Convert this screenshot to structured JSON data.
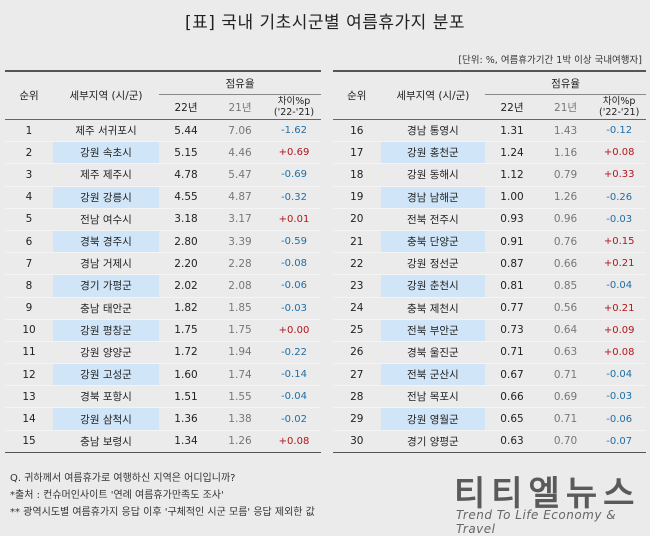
{
  "title": "[표] 국내 기초시군별 여름휴가지 분포",
  "unit_note": "[단위: %, 여름휴가기간 1박 이상 국내여행자]",
  "headers": {
    "rank": "순위",
    "region": "세부지역 (시/군)",
    "occupancy": "점유율",
    "y22": "22년",
    "y21": "21년",
    "diff": "차이%p",
    "diff_sub": "('22-'21)"
  },
  "table_left": [
    {
      "rank": "1",
      "region": "제주 서귀포시",
      "y22": "5.44",
      "y21": "7.06",
      "diff": "-1.62"
    },
    {
      "rank": "2",
      "region": "강원 속초시",
      "y22": "5.15",
      "y21": "4.46",
      "diff": "+0.69"
    },
    {
      "rank": "3",
      "region": "제주 제주시",
      "y22": "4.78",
      "y21": "5.47",
      "diff": "-0.69"
    },
    {
      "rank": "4",
      "region": "강원 강릉시",
      "y22": "4.55",
      "y21": "4.87",
      "diff": "-0.32"
    },
    {
      "rank": "5",
      "region": "전남 여수시",
      "y22": "3.18",
      "y21": "3.17",
      "diff": "+0.01"
    },
    {
      "rank": "6",
      "region": "경북 경주시",
      "y22": "2.80",
      "y21": "3.39",
      "diff": "-0.59"
    },
    {
      "rank": "7",
      "region": "경남 거제시",
      "y22": "2.20",
      "y21": "2.28",
      "diff": "-0.08"
    },
    {
      "rank": "8",
      "region": "경기 가평군",
      "y22": "2.02",
      "y21": "2.08",
      "diff": "-0.06"
    },
    {
      "rank": "9",
      "region": "충남 태안군",
      "y22": "1.82",
      "y21": "1.85",
      "diff": "-0.03"
    },
    {
      "rank": "10",
      "region": "강원 평창군",
      "y22": "1.75",
      "y21": "1.75",
      "diff": "+0.00"
    },
    {
      "rank": "11",
      "region": "강원 양양군",
      "y22": "1.72",
      "y21": "1.94",
      "diff": "-0.22"
    },
    {
      "rank": "12",
      "region": "강원 고성군",
      "y22": "1.60",
      "y21": "1.74",
      "diff": "-0.14"
    },
    {
      "rank": "13",
      "region": "경북 포항시",
      "y22": "1.51",
      "y21": "1.55",
      "diff": "-0.04"
    },
    {
      "rank": "14",
      "region": "강원 삼척시",
      "y22": "1.36",
      "y21": "1.38",
      "diff": "-0.02"
    },
    {
      "rank": "15",
      "region": "충남 보령시",
      "y22": "1.34",
      "y21": "1.26",
      "diff": "+0.08"
    }
  ],
  "table_right": [
    {
      "rank": "16",
      "region": "경남 통영시",
      "y22": "1.31",
      "y21": "1.43",
      "diff": "-0.12"
    },
    {
      "rank": "17",
      "region": "강원 홍천군",
      "y22": "1.24",
      "y21": "1.16",
      "diff": "+0.08"
    },
    {
      "rank": "18",
      "region": "강원 동해시",
      "y22": "1.12",
      "y21": "0.79",
      "diff": "+0.33"
    },
    {
      "rank": "19",
      "region": "경남 남해군",
      "y22": "1.00",
      "y21": "1.26",
      "diff": "-0.26"
    },
    {
      "rank": "20",
      "region": "전북 전주시",
      "y22": "0.93",
      "y21": "0.96",
      "diff": "-0.03"
    },
    {
      "rank": "21",
      "region": "충북 단양군",
      "y22": "0.91",
      "y21": "0.76",
      "diff": "+0.15"
    },
    {
      "rank": "22",
      "region": "강원 정선군",
      "y22": "0.87",
      "y21": "0.66",
      "diff": "+0.21"
    },
    {
      "rank": "23",
      "region": "강원 춘천시",
      "y22": "0.81",
      "y21": "0.85",
      "diff": "-0.04"
    },
    {
      "rank": "24",
      "region": "충북 제천시",
      "y22": "0.77",
      "y21": "0.56",
      "diff": "+0.21"
    },
    {
      "rank": "25",
      "region": "전북 부안군",
      "y22": "0.73",
      "y21": "0.64",
      "diff": "+0.09"
    },
    {
      "rank": "26",
      "region": "경북 울진군",
      "y22": "0.71",
      "y21": "0.63",
      "diff": "+0.08"
    },
    {
      "rank": "27",
      "region": "전북 군산시",
      "y22": "0.67",
      "y21": "0.71",
      "diff": "-0.04"
    },
    {
      "rank": "28",
      "region": "전남 목포시",
      "y22": "0.66",
      "y21": "0.69",
      "diff": "-0.03"
    },
    {
      "rank": "29",
      "region": "강원 영월군",
      "y22": "0.65",
      "y21": "0.71",
      "diff": "-0.06"
    },
    {
      "rank": "30",
      "region": "경기 양평군",
      "y22": "0.63",
      "y21": "0.70",
      "diff": "-0.07"
    }
  ],
  "footer": {
    "question": "Q. 귀하께서 여름휴가로 여행하신 지역은 어디입니까?",
    "source": "*출처 : 컨슈머인사이트 '연례 여름휴가만족도 조사'",
    "note": "** 광역시도별 여름휴가지 응답 이후 '구체적인 시군 모름' 응답 제외한 값"
  },
  "logo": {
    "main": "티티엘뉴스",
    "sub": "Trend To Life Economy & Travel"
  },
  "colors": {
    "negative": "#1d6fa5",
    "positive": "#b0161e",
    "stripe": "#d0e6f8",
    "background": "#ebebeb"
  }
}
